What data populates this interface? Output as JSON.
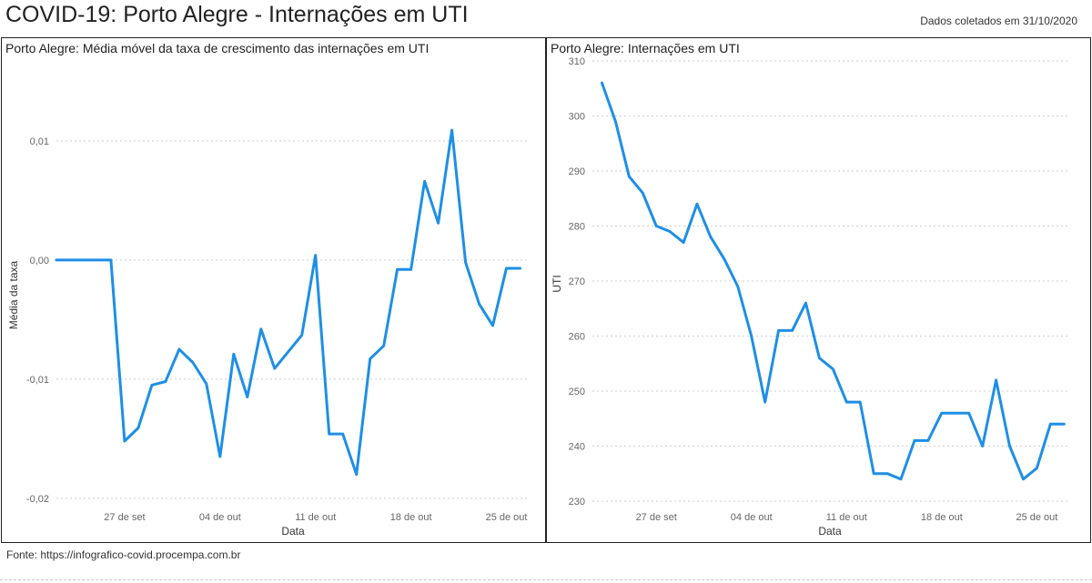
{
  "header": {
    "title": "COVID-19: Porto Alegre - Internações em UTI",
    "collected": "Dados coletados em 31/10/2020"
  },
  "footer": {
    "source": "Fonte: https://infografico-covid.procempa.com.br"
  },
  "colors": {
    "line": "#1e8fe6",
    "grid": "#cfcfcf",
    "border": "#222222"
  },
  "chart_data": [
    {
      "type": "line",
      "title": "Porto Alegre: Média móvel da taxa de crescimento das internações em UTI",
      "xlabel": "Data",
      "ylabel": "Média da taxa",
      "x_ticks": [
        {
          "label": "27 de set",
          "day": 27
        },
        {
          "label": "04 de out",
          "day": 34
        },
        {
          "label": "11 de out",
          "day": 41
        },
        {
          "label": "18 de out",
          "day": 48
        },
        {
          "label": "25 de out",
          "day": 55
        }
      ],
      "xlim": [
        22,
        56.7
      ],
      "y_ticks": [
        {
          "label": "0,01",
          "value": 0.01
        },
        {
          "label": "0,00",
          "value": 0.0
        },
        {
          "label": "-0,01",
          "value": -0.01
        },
        {
          "label": "-0,02",
          "value": -0.02
        }
      ],
      "ylim": [
        -0.0207,
        0.0148
      ],
      "grid": true,
      "series": [
        {
          "x": [
            22,
            23,
            24,
            25,
            26,
            27,
            28,
            29,
            30,
            31,
            32,
            33,
            34,
            35,
            36,
            37,
            38,
            39,
            40,
            41,
            42,
            43,
            44,
            45,
            46,
            47,
            48,
            49,
            50,
            51,
            52,
            53,
            54,
            55,
            56
          ],
          "y": [
            0,
            0,
            0,
            0,
            0,
            -0.0152,
            -0.0141,
            -0.0105,
            -0.0102,
            -0.0075,
            -0.0086,
            -0.0104,
            -0.0165,
            -0.0079,
            -0.0115,
            -0.0058,
            -0.0091,
            -0.0077,
            -0.0063,
            0.0004,
            -0.0146,
            -0.0146,
            -0.018,
            -0.0083,
            -0.0072,
            -0.0008,
            -0.0008,
            0.0066,
            0.0031,
            0.0109,
            -0.0002,
            -0.0037,
            -0.0055,
            -0.0007,
            -0.0007
          ]
        }
      ]
    },
    {
      "type": "line",
      "title": "Porto Alegre: Internações em UTI",
      "xlabel": "Data",
      "ylabel": "UTI",
      "x_ticks": [
        {
          "label": "27 de set",
          "day": 27
        },
        {
          "label": "04 de out",
          "day": 34
        },
        {
          "label": "11 de out",
          "day": 41
        },
        {
          "label": "18 de out",
          "day": 48
        },
        {
          "label": "25 de out",
          "day": 55
        }
      ],
      "xlim": [
        22.3,
        57.25
      ],
      "y_ticks": [
        {
          "label": "310",
          "value": 310
        },
        {
          "label": "300",
          "value": 300
        },
        {
          "label": "290",
          "value": 290
        },
        {
          "label": "280",
          "value": 280
        },
        {
          "label": "270",
          "value": 270
        },
        {
          "label": "260",
          "value": 260
        },
        {
          "label": "250",
          "value": 250
        },
        {
          "label": "240",
          "value": 240
        },
        {
          "label": "230",
          "value": 230
        }
      ],
      "ylim": [
        229,
        310
      ],
      "grid": true,
      "series": [
        {
          "x": [
            23,
            24,
            25,
            26,
            27,
            28,
            29,
            30,
            31,
            32,
            33,
            34,
            35,
            36,
            37,
            38,
            39,
            40,
            41,
            42,
            43,
            44,
            45,
            46,
            47,
            48,
            49,
            50,
            51,
            52,
            53,
            54,
            55,
            56,
            57
          ],
          "y": [
            306,
            299,
            289,
            286,
            280,
            279,
            277,
            284,
            278,
            274,
            269,
            260,
            248,
            261,
            261,
            266,
            256,
            254,
            248,
            248,
            235,
            235,
            234,
            241,
            241,
            246,
            246,
            246,
            240,
            252,
            240,
            234,
            236,
            244,
            244
          ]
        }
      ]
    }
  ]
}
